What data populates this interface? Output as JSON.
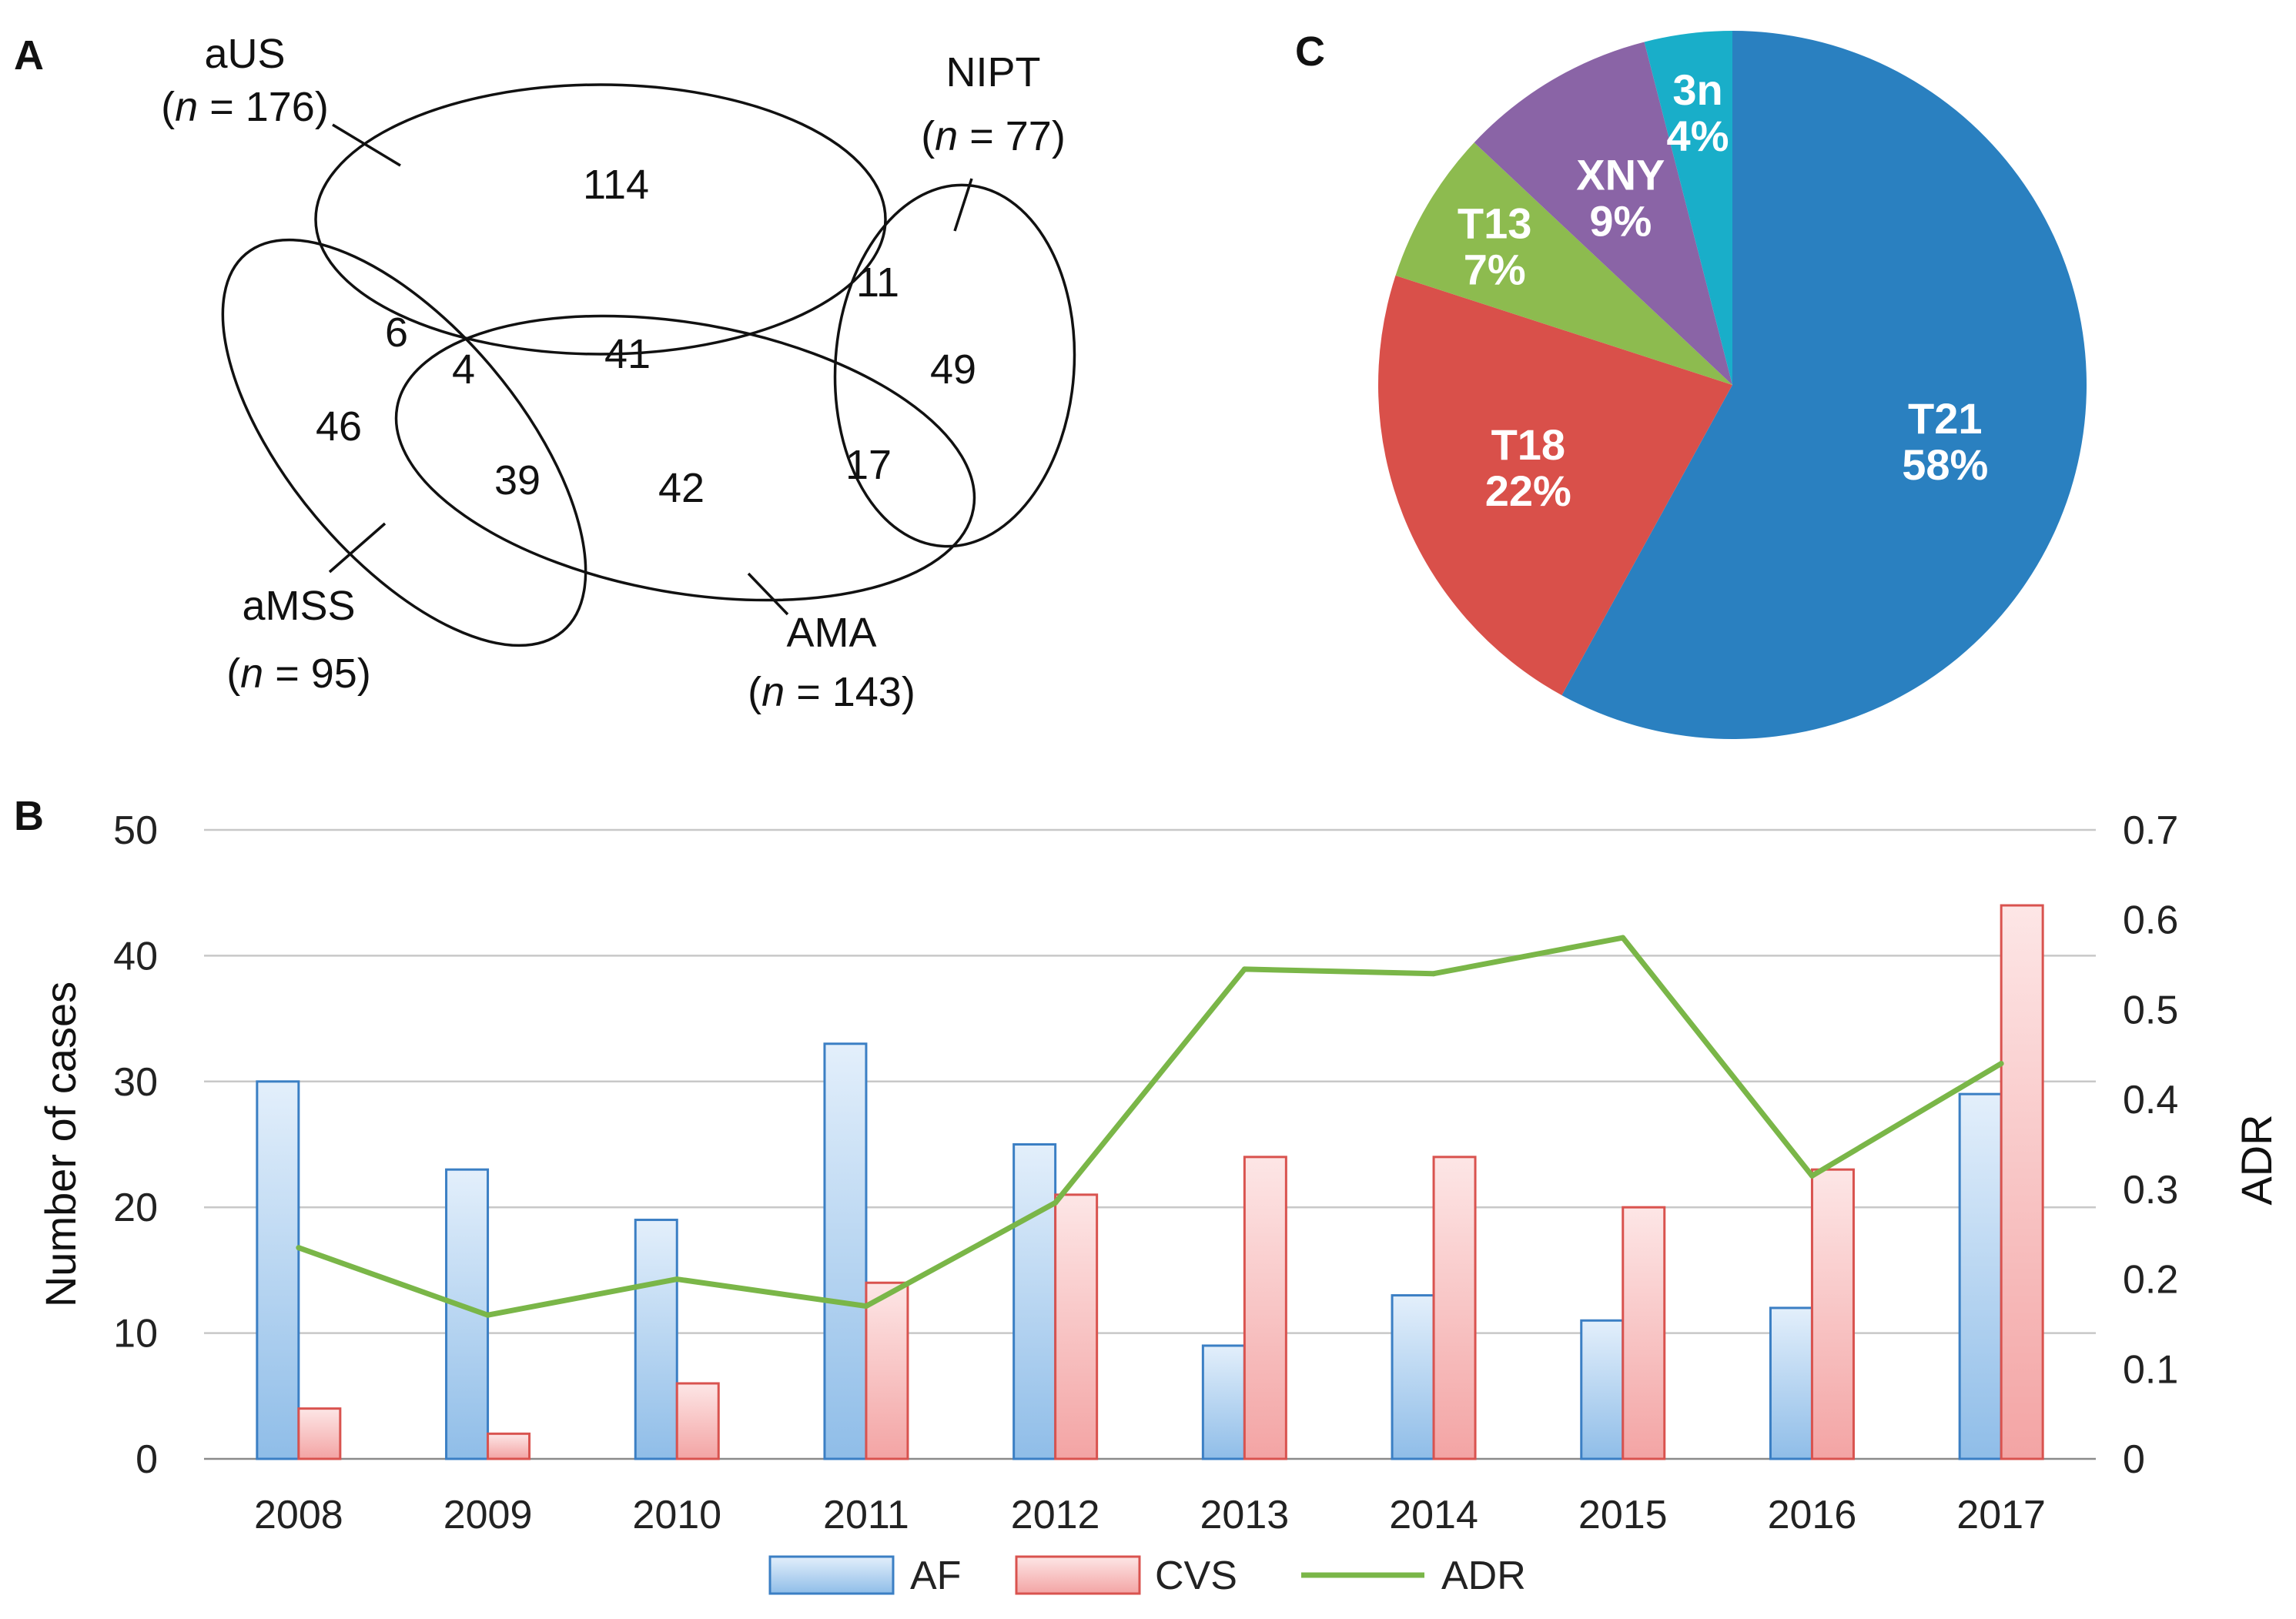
{
  "panels": {
    "a": "A",
    "b": "B",
    "c": "C"
  },
  "venn": {
    "sets": [
      {
        "id": "aUS",
        "name": "aUS",
        "n_text": "(n = 176)"
      },
      {
        "id": "NIPT",
        "name": "NIPT",
        "n_text": "(n = 77)"
      },
      {
        "id": "aMSS",
        "name": "aMSS",
        "n_text": "(n = 95)"
      },
      {
        "id": "AMA",
        "name": "AMA",
        "n_text": "(n = 143)"
      }
    ],
    "n_letter": "n",
    "regions": [
      {
        "sets": [
          "aUS"
        ],
        "value": "114"
      },
      {
        "sets": [
          "aUS",
          "NIPT"
        ],
        "value": "11"
      },
      {
        "sets": [
          "NIPT"
        ],
        "value": "49"
      },
      {
        "sets": [
          "aUS",
          "aMSS"
        ],
        "value": "6"
      },
      {
        "sets": [
          "aUS",
          "aMSS",
          "AMA"
        ],
        "value": "4"
      },
      {
        "sets": [
          "aUS",
          "AMA"
        ],
        "value": "41"
      },
      {
        "sets": [
          "aMSS"
        ],
        "value": "46"
      },
      {
        "sets": [
          "aMSS",
          "AMA"
        ],
        "value": "39"
      },
      {
        "sets": [
          "AMA"
        ],
        "value": "42"
      },
      {
        "sets": [
          "AMA",
          "NIPT"
        ],
        "value": "17"
      }
    ]
  },
  "chart_data": [
    {
      "type": "pie",
      "panel": "C",
      "slices": [
        {
          "label": "T21",
          "value_text": "58%",
          "value": 58,
          "color": "#2a80c0"
        },
        {
          "label": "T18",
          "value_text": "22%",
          "value": 22,
          "color": "#d9504a"
        },
        {
          "label": "T13",
          "value_text": "7%",
          "value": 7,
          "color": "#8dbb4f"
        },
        {
          "label": "XNY",
          "value_text": "9%",
          "value": 9,
          "color": "#8a64a6"
        },
        {
          "label": "3n",
          "value_text": "4%",
          "value": 4,
          "color": "#19aec9"
        }
      ]
    },
    {
      "type": "bar",
      "panel": "B",
      "categories": [
        "2008",
        "2009",
        "2010",
        "2011",
        "2012",
        "2013",
        "2014",
        "2015",
        "2016",
        "2017"
      ],
      "series": [
        {
          "name": "AF",
          "type": "bar",
          "axis": "left",
          "color": "#3b7fc4",
          "values": [
            30,
            23,
            19,
            33,
            25,
            9,
            13,
            11,
            12,
            29
          ]
        },
        {
          "name": "CVS",
          "type": "bar",
          "axis": "left",
          "color": "#d9534f",
          "values": [
            4,
            2,
            6,
            14,
            21,
            24,
            24,
            20,
            23,
            44
          ]
        },
        {
          "name": "ADR",
          "type": "line",
          "axis": "right",
          "color": "#7ab648",
          "values": [
            0.235,
            0.16,
            0.2,
            0.17,
            0.285,
            0.545,
            0.54,
            0.58,
            0.315,
            0.44
          ]
        }
      ],
      "ylabel": "Number of cases",
      "ylim": [
        0,
        50
      ],
      "yticks": [
        "0",
        "10",
        "20",
        "30",
        "40",
        "50"
      ],
      "y2label": "ADR",
      "y2lim": [
        0,
        0.7
      ],
      "y2ticks": [
        "0",
        "0.1",
        "0.2",
        "0.3",
        "0.4",
        "0.5",
        "0.6",
        "0.7"
      ],
      "grid": true,
      "legend": "bottom"
    }
  ]
}
